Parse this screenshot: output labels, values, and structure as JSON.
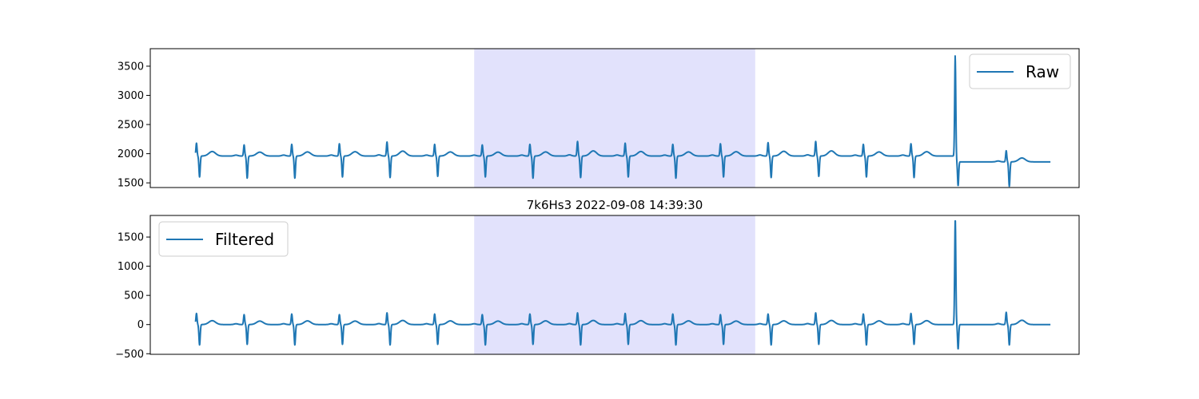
{
  "chart_data": [
    {
      "type": "line",
      "title": "",
      "xlabel": "",
      "ylabel": "",
      "ylim": [
        1420,
        3800
      ],
      "xlim": [
        -1.0,
        18.5
      ],
      "yticks": [
        1500,
        2000,
        2500,
        3000,
        3500
      ],
      "x_ticks_shown": false,
      "grid": false,
      "legend": {
        "entries": [
          "Raw"
        ],
        "placement": "top-right"
      },
      "highlight_span": {
        "x_start": 5.8,
        "x_end": 11.7,
        "color": "#e2e2fc"
      },
      "series": [
        {
          "name": "Raw",
          "color": "#1f77b4",
          "baseline": 1960,
          "beats": [
            {
              "t": 0.0,
              "r": 2180,
              "s": 1600
            },
            {
              "t": 1.0,
              "r": 2150,
              "s": 1580
            },
            {
              "t": 2.0,
              "r": 2160,
              "s": 1580
            },
            {
              "t": 3.0,
              "r": 2170,
              "s": 1600
            },
            {
              "t": 4.0,
              "r": 2200,
              "s": 1590
            },
            {
              "t": 5.0,
              "r": 2160,
              "s": 1610
            },
            {
              "t": 6.0,
              "r": 2150,
              "s": 1600
            },
            {
              "t": 7.0,
              "r": 2160,
              "s": 1580
            },
            {
              "t": 8.0,
              "r": 2210,
              "s": 1590
            },
            {
              "t": 9.0,
              "r": 2180,
              "s": 1600
            },
            {
              "t": 10.0,
              "r": 2160,
              "s": 1580
            },
            {
              "t": 11.0,
              "r": 2170,
              "s": 1600
            },
            {
              "t": 12.0,
              "r": 2190,
              "s": 1590
            },
            {
              "t": 13.0,
              "r": 2210,
              "s": 1610
            },
            {
              "t": 14.0,
              "r": 2160,
              "s": 1600
            },
            {
              "t": 15.0,
              "r": 2170,
              "s": 1590
            },
            {
              "t": 15.9,
              "r": 3700,
              "s": 1550,
              "artifact": true
            },
            {
              "t": 17.0,
              "r": 2150,
              "s": 1540
            }
          ],
          "end_t": 17.9,
          "baseline_after_artifact": 1860
        }
      ]
    },
    {
      "type": "line",
      "title": "7k6Hs3 2022-09-08 14:39:30",
      "xlabel": "",
      "ylabel": "",
      "ylim": [
        -510,
        1870
      ],
      "xlim": [
        -1.0,
        18.5
      ],
      "yticks": [
        -500,
        0,
        500,
        1000,
        1500
      ],
      "x_ticks_shown": false,
      "grid": false,
      "legend": {
        "entries": [
          "Filtered"
        ],
        "placement": "top-left"
      },
      "highlight_span": {
        "x_start": 5.8,
        "x_end": 11.7,
        "color": "#e2e2fc"
      },
      "series": [
        {
          "name": "Filtered",
          "color": "#1f77b4",
          "baseline": 0,
          "beats": [
            {
              "t": 0.0,
              "r": 190,
              "s": -350
            },
            {
              "t": 1.0,
              "r": 170,
              "s": -340
            },
            {
              "t": 2.0,
              "r": 180,
              "s": -350
            },
            {
              "t": 3.0,
              "r": 170,
              "s": -340
            },
            {
              "t": 4.0,
              "r": 200,
              "s": -350
            },
            {
              "t": 5.0,
              "r": 180,
              "s": -340
            },
            {
              "t": 6.0,
              "r": 170,
              "s": -350
            },
            {
              "t": 7.0,
              "r": 180,
              "s": -340
            },
            {
              "t": 8.0,
              "r": 200,
              "s": -350
            },
            {
              "t": 9.0,
              "r": 190,
              "s": -340
            },
            {
              "t": 10.0,
              "r": 180,
              "s": -350
            },
            {
              "t": 11.0,
              "r": 170,
              "s": -340
            },
            {
              "t": 12.0,
              "r": 180,
              "s": -350
            },
            {
              "t": 13.0,
              "r": 200,
              "s": -340
            },
            {
              "t": 14.0,
              "r": 180,
              "s": -350
            },
            {
              "t": 15.0,
              "r": 190,
              "s": -340
            },
            {
              "t": 15.9,
              "r": 1800,
              "s": -420,
              "artifact": true
            },
            {
              "t": 17.0,
              "r": 210,
              "s": -350
            }
          ],
          "end_t": 17.9,
          "baseline_after_artifact": 0
        }
      ]
    }
  ]
}
